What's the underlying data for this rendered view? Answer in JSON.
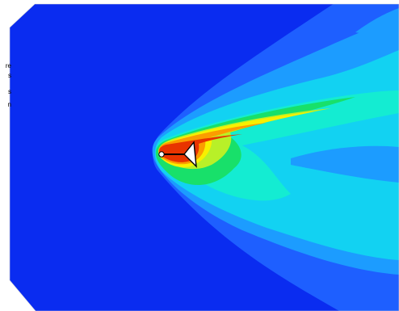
{
  "figure": {
    "legend_fragments": [
      "re",
      "s",
      "s",
      "n"
    ],
    "contour_colors": {
      "background": "#0a2cf0",
      "blue_2": "#1e5fff",
      "blue_3": "#1c9cff",
      "cyan": "#12d2f2",
      "aqua": "#14ecd2",
      "green": "#18e06a",
      "yellow_green": "#b8f028",
      "yellow": "#f8f000",
      "orange": "#fb9d00",
      "red": "#e83400"
    },
    "body_color": "#ffffff",
    "body_outline": "#000000",
    "view_clipped": [
      "top-left",
      "bottom-left",
      "right"
    ]
  }
}
